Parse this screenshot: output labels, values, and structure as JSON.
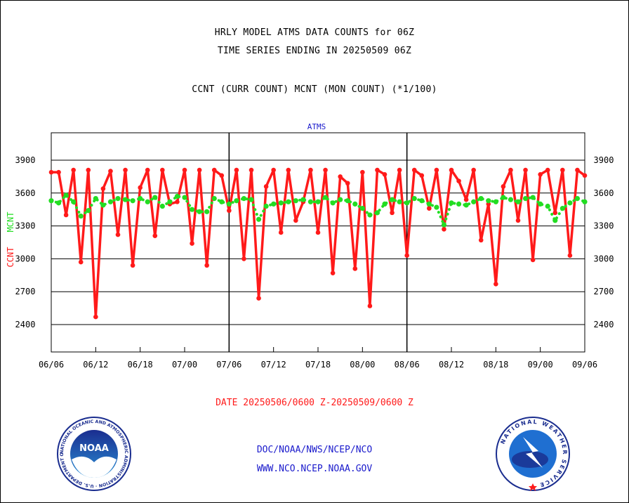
{
  "titles": {
    "line1": "HRLY MODEL ATMS DATA COUNTS for 06Z",
    "line2": "TIME SERIES ENDING IN 20250509 06Z",
    "line3": "CCNT (CURR COUNT) MCNT (MON COUNT) (*1/100)"
  },
  "footer": {
    "date_range": "DATE 20250506/0600 Z-20250509/0600 Z",
    "org": "DOC/NOAA/NWS/NCEP/NCO",
    "url": "WWW.NCO.NCEP.NOAA.GOV"
  },
  "logos": {
    "left": {
      "name": "noaa-logo",
      "text": "NOAA",
      "ring_text": "NATIONAL OCEANIC AND ATMOSPHERIC ADMINISTRATION · U.S. DEPARTMENT OF COMMERCE"
    },
    "right": {
      "name": "nws-logo",
      "ring_text": "NATIONAL WEATHER SERVICE"
    }
  },
  "colors": {
    "ccnt": "#ff1a1a",
    "mcnt": "#22dd22",
    "panel_title": "#1a1acc",
    "footer_date": "#ff1a1a",
    "footer_links": "#1a1acc"
  },
  "chart_data": {
    "type": "line",
    "panel_title": "ATMS",
    "ylabel_left_1": "CCNT",
    "ylabel_left_2": "MCNT",
    "ylim": [
      2150,
      4150
    ],
    "yticks": [
      2400,
      2700,
      3000,
      3300,
      3600,
      3900
    ],
    "grid": true,
    "x_tick_labels": [
      "06/06",
      "06/12",
      "06/18",
      "07/00",
      "07/06",
      "07/12",
      "07/18",
      "08/00",
      "08/06",
      "08/12",
      "08/18",
      "09/00",
      "09/06"
    ],
    "day_separators": [
      "07/06",
      "08/06"
    ],
    "series": [
      {
        "name": "CCNT",
        "style": "solid",
        "values": [
          3790,
          3790,
          3400,
          3810,
          2970,
          3810,
          2470,
          3640,
          3800,
          3220,
          3810,
          2940,
          3650,
          3810,
          3210,
          3810,
          3500,
          3520,
          3810,
          3140,
          3810,
          2940,
          3810,
          3760,
          3440,
          3810,
          3000,
          3810,
          2640,
          3660,
          3810,
          3240,
          3810,
          3350,
          3520,
          3810,
          3240,
          3810,
          2870,
          3750,
          3690,
          2910,
          3790,
          2570,
          3810,
          3770,
          3420,
          3810,
          3030,
          3810,
          3760,
          3460,
          3810,
          3270,
          3810,
          3710,
          3540,
          3810,
          3170,
          3500,
          2770,
          3660,
          3810,
          3350,
          3810,
          2990,
          3770,
          3810,
          3420,
          3810,
          3030,
          3810,
          3760
        ]
      },
      {
        "name": "MCNT",
        "style": "dotted",
        "values": [
          3530,
          3510,
          3580,
          3520,
          3390,
          3440,
          3550,
          3490,
          3520,
          3550,
          3540,
          3530,
          3550,
          3520,
          3560,
          3480,
          3520,
          3570,
          3560,
          3450,
          3430,
          3430,
          3550,
          3520,
          3500,
          3530,
          3550,
          3540,
          3360,
          3480,
          3500,
          3510,
          3520,
          3530,
          3540,
          3520,
          3520,
          3560,
          3510,
          3540,
          3530,
          3500,
          3460,
          3400,
          3420,
          3500,
          3540,
          3520,
          3510,
          3550,
          3530,
          3500,
          3470,
          3310,
          3510,
          3500,
          3490,
          3520,
          3550,
          3530,
          3520,
          3560,
          3540,
          3520,
          3550,
          3560,
          3500,
          3480,
          3350,
          3460,
          3510,
          3550,
          3520
        ]
      }
    ]
  }
}
